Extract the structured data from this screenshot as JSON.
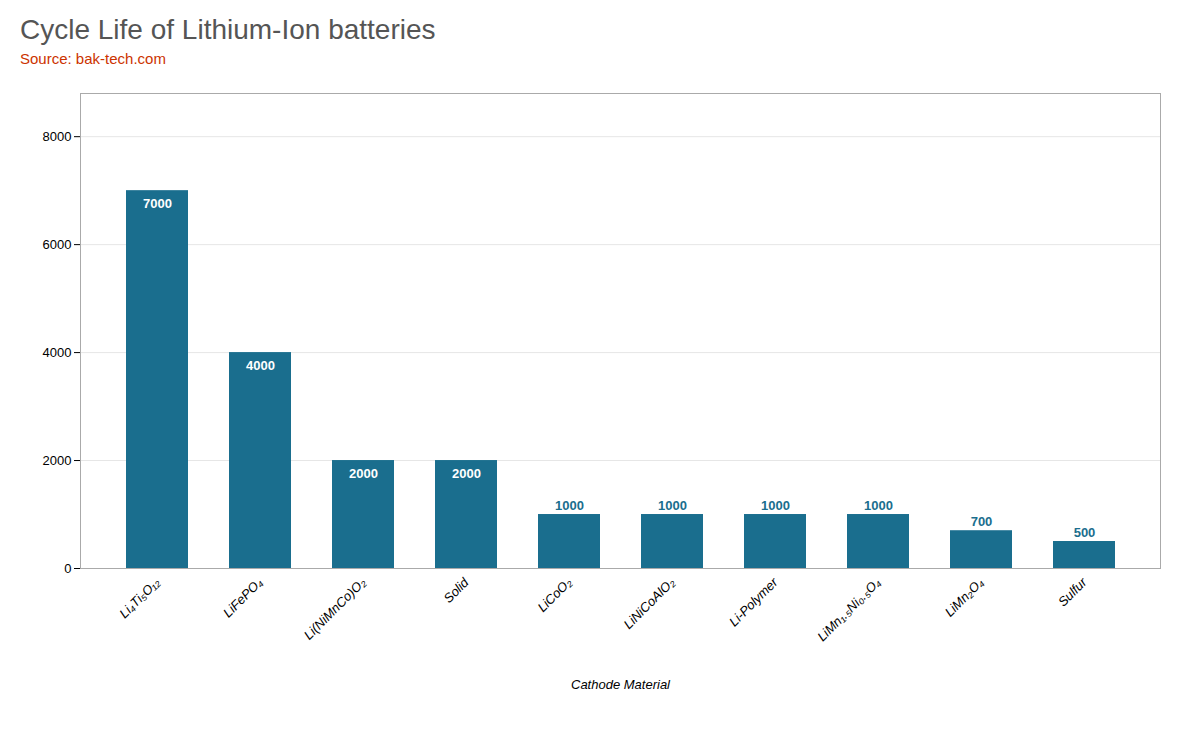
{
  "chart_data": {
    "type": "bar",
    "title": "Cycle Life of Lithium-Ion batteries",
    "subtitle": "Source: bak-tech.com",
    "xlabel": "Cathode Material",
    "categories": [
      "Li₄Ti₅O₁₂",
      "LiFePO₄",
      "Li(NiMnCo)O₂",
      "Solid",
      "LiCoO₂",
      "LiNiCoAlO₂",
      "Li-Polymer",
      "LiMn₁.₅Ni₀.₅O₄",
      "LiMn₂O₄",
      "Sulfur"
    ],
    "values": [
      7000,
      4000,
      2000,
      2000,
      1000,
      1000,
      1000,
      1000,
      700,
      500
    ],
    "color": "#1a6e8e",
    "ylim": [
      0,
      8800
    ],
    "yticks": [
      0,
      2000,
      4000,
      6000,
      8000
    ],
    "grid": true,
    "data_labels": true
  }
}
